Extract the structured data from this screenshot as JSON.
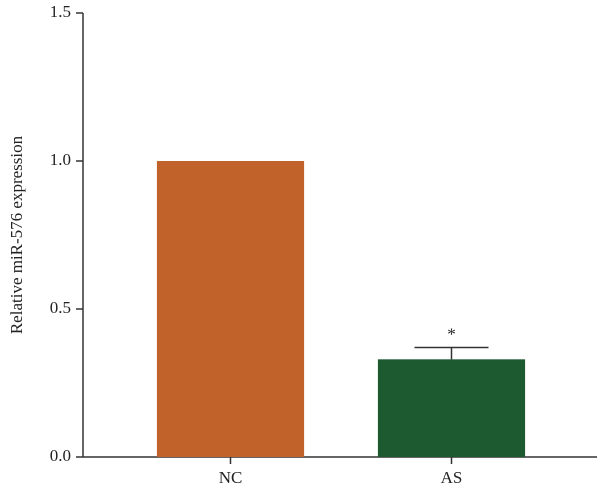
{
  "chart_data": {
    "type": "bar",
    "ylabel": "Relative miR-576 expression",
    "categories": [
      "NC",
      "AS"
    ],
    "values": [
      1.0,
      0.33
    ],
    "errors": [
      null,
      0.04
    ],
    "significance": [
      null,
      "*"
    ],
    "colors": [
      "#c0622a",
      "#1e5a30"
    ],
    "ylim": [
      0,
      1.5
    ],
    "yticks": [
      {
        "value": 0,
        "label": "0.0"
      },
      0.5,
      {
        "value": 1,
        "label": "1.0"
      },
      1.5
    ]
  }
}
